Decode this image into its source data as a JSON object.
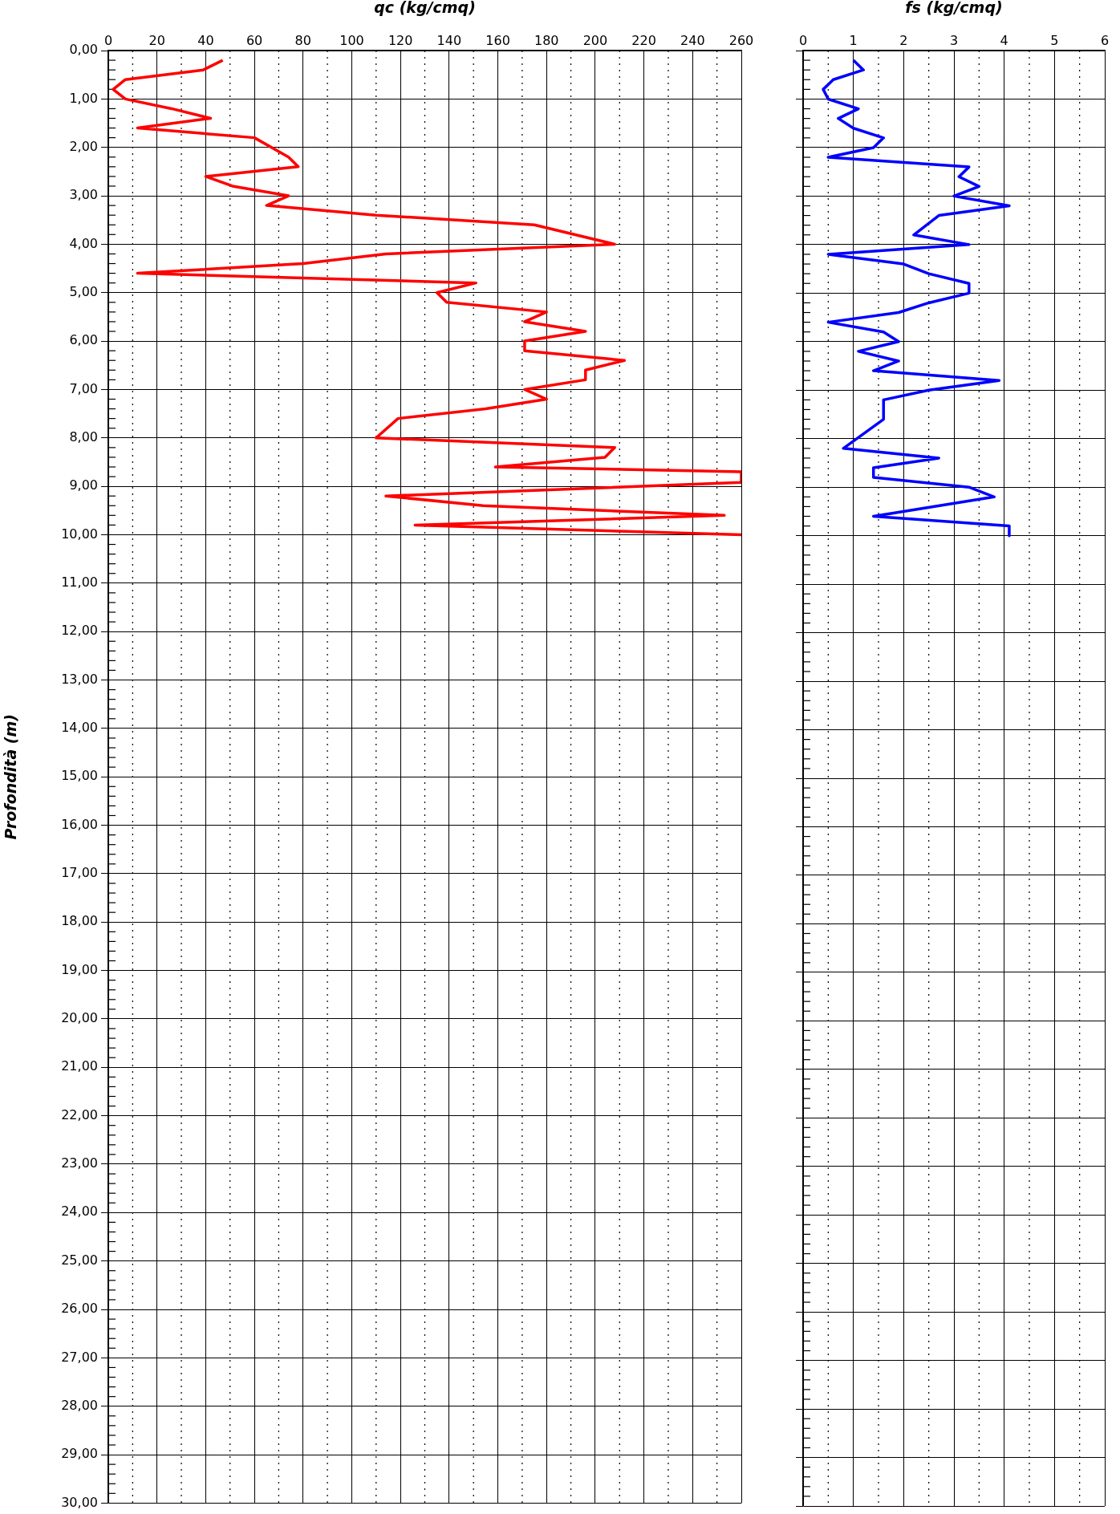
{
  "chart_data": [
    {
      "type": "line",
      "xlabel": "qc (kg/cmq)",
      "ylabel": "Profondità (m)",
      "xlim": [
        0,
        260
      ],
      "xticks": [
        0,
        20,
        40,
        60,
        80,
        100,
        120,
        140,
        160,
        180,
        200,
        220,
        240,
        260
      ],
      "ylim": [
        30,
        0
      ],
      "yticks": [
        {
          "value": 0,
          "label": "0,00"
        },
        {
          "value": 1,
          "label": "1,00"
        },
        {
          "value": 2,
          "label": "2,00"
        },
        {
          "value": 3,
          "label": "3,00"
        },
        {
          "value": 4,
          "label": "4,00"
        },
        {
          "value": 5,
          "label": "5,00"
        },
        {
          "value": 6,
          "label": "6,00"
        },
        {
          "value": 7,
          "label": "7,00"
        },
        {
          "value": 8,
          "label": "8,00"
        },
        {
          "value": 9,
          "label": "9,00"
        },
        {
          "value": 10,
          "label": "10,00"
        },
        {
          "value": 11,
          "label": "11,00"
        },
        {
          "value": 12,
          "label": "12,00"
        },
        {
          "value": 13,
          "label": "13,00"
        },
        {
          "value": 14,
          "label": "14,00"
        },
        {
          "value": 15,
          "label": "15,00"
        },
        {
          "value": 16,
          "label": "16,00"
        },
        {
          "value": 17,
          "label": "17,00"
        },
        {
          "value": 18,
          "label": "18,00"
        },
        {
          "value": 19,
          "label": "19,00"
        },
        {
          "value": 20,
          "label": "20,00"
        },
        {
          "value": 21,
          "label": "21,00"
        },
        {
          "value": 22,
          "label": "22,00"
        },
        {
          "value": 23,
          "label": "23,00"
        },
        {
          "value": 24,
          "label": "24,00"
        },
        {
          "value": 25,
          "label": "25,00"
        },
        {
          "value": 26,
          "label": "26,00"
        },
        {
          "value": 27,
          "label": "27,00"
        },
        {
          "value": 28,
          "label": "28,00"
        },
        {
          "value": 29,
          "label": "29,00"
        },
        {
          "value": 30,
          "label": "30,00"
        }
      ],
      "grid": true,
      "marker": "none",
      "line_style": "solid",
      "series": [
        {
          "color": "#ff0000",
          "x": [
            47,
            39,
            7,
            2,
            7,
            26,
            42,
            12,
            60,
            74,
            78,
            40,
            51,
            74,
            65,
            110,
            175,
            208,
            114,
            80,
            12,
            151,
            135,
            139,
            180,
            171,
            196,
            171,
            171,
            212,
            196,
            196,
            171,
            180,
            155,
            119,
            110,
            208,
            204,
            159,
            260,
            260,
            114,
            154,
            253,
            126,
            260
          ],
          "values": [
            0.2,
            0.4,
            0.6,
            0.8,
            1.0,
            1.2,
            1.4,
            1.6,
            1.8,
            2.2,
            2.4,
            2.6,
            2.8,
            3.0,
            3.2,
            3.4,
            3.6,
            4.0,
            4.2,
            4.4,
            4.6,
            4.8,
            5.0,
            5.2,
            5.4,
            5.6,
            5.8,
            6.0,
            6.2,
            6.4,
            6.6,
            6.8,
            7.0,
            7.2,
            7.4,
            7.6,
            8.0,
            8.2,
            8.4,
            8.6,
            8.7,
            8.92,
            9.2,
            9.4,
            9.6,
            9.8,
            10.0
          ]
        }
      ]
    },
    {
      "type": "line",
      "xlabel": "fs (kg/cmq)",
      "xlim": [
        0,
        6
      ],
      "xticks": [
        0,
        1,
        2,
        3,
        4,
        5,
        6
      ],
      "ylim": [
        30,
        0
      ],
      "yticks": [
        0,
        1,
        2,
        3,
        4,
        5,
        6,
        7,
        8,
        9,
        10,
        11,
        12,
        13,
        14,
        15,
        16,
        17,
        18,
        19,
        20,
        21,
        22,
        23,
        24,
        25,
        26,
        27,
        28,
        29,
        30
      ],
      "tick_labels": "x",
      "grid": true,
      "marker": "none",
      "line_style": "solid",
      "series": [
        {
          "color": "#0000ff",
          "x": [
            1.0,
            1.2,
            0.6,
            0.4,
            0.5,
            1.1,
            0.7,
            1.0,
            1.6,
            1.4,
            0.5,
            3.3,
            3.1,
            3.5,
            3.0,
            4.1,
            2.7,
            2.2,
            3.3,
            0.5,
            2.0,
            2.5,
            3.3,
            3.3,
            2.5,
            1.9,
            0.5,
            1.6,
            1.9,
            1.1,
            1.9,
            1.4,
            3.9,
            2.5,
            1.6,
            1.6,
            0.8,
            2.7,
            1.4,
            1.4,
            3.3,
            3.8,
            1.4,
            4.1,
            4.1
          ],
          "values": [
            0.2,
            0.4,
            0.6,
            0.8,
            1.0,
            1.2,
            1.4,
            1.6,
            1.8,
            2.0,
            2.2,
            2.4,
            2.6,
            2.8,
            3.0,
            3.2,
            3.4,
            3.8,
            4.0,
            4.2,
            4.4,
            4.6,
            4.8,
            5.0,
            5.2,
            5.4,
            5.6,
            5.8,
            6.0,
            6.2,
            6.4,
            6.6,
            6.8,
            7.0,
            7.2,
            7.6,
            8.2,
            8.4,
            8.6,
            8.8,
            9.0,
            9.2,
            9.6,
            9.8,
            10.0
          ]
        }
      ]
    }
  ]
}
